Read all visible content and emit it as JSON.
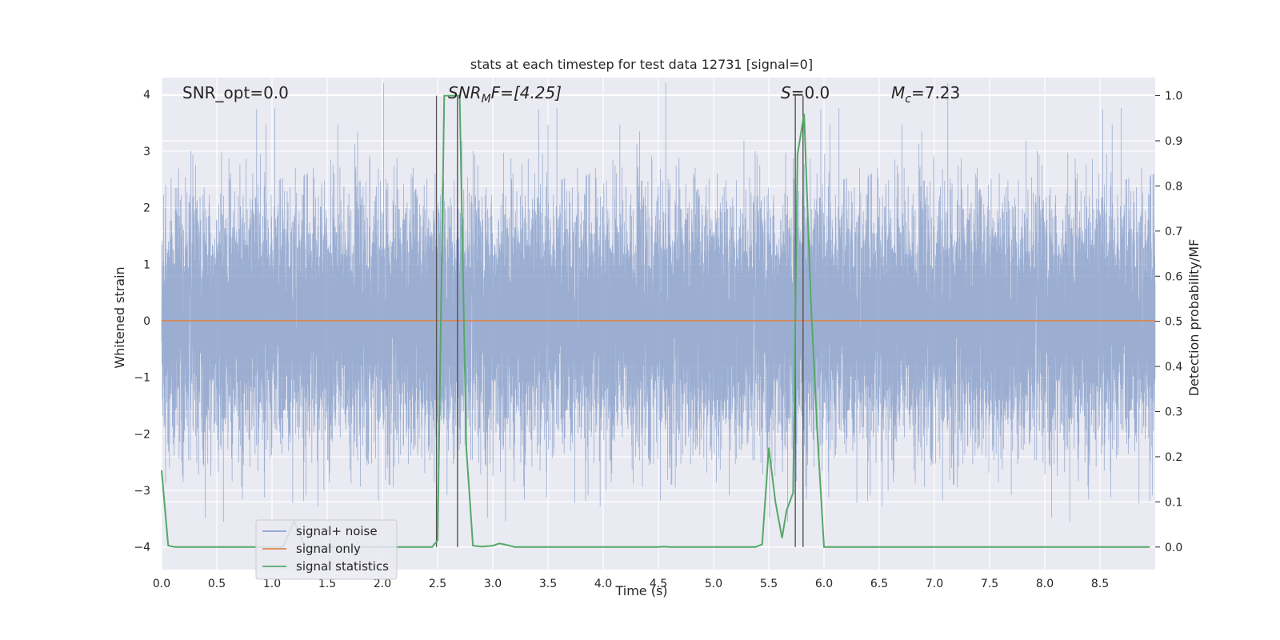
{
  "chart_data": {
    "type": "line",
    "title": "stats at each timestep for test data 12731 [signal=0]",
    "xlabel": "Time (s)",
    "ylabel_left": "Whitened strain",
    "ylabel_right": "Detection probability/MF",
    "xlim": [
      0.0,
      9.0
    ],
    "ylim_left": [
      -4.4,
      4.3
    ],
    "ylim_right": [
      -0.05,
      1.04
    ],
    "grid": true,
    "legend_position": "lower-left",
    "x_ticks": [
      "0.0",
      "0.5",
      "1.0",
      "1.5",
      "2.0",
      "2.5",
      "3.0",
      "3.5",
      "4.0",
      "4.5",
      "5.0",
      "5.5",
      "6.0",
      "6.5",
      "7.0",
      "7.5",
      "8.0",
      "8.5"
    ],
    "x_tick_values": [
      0.0,
      0.5,
      1.0,
      1.5,
      2.0,
      2.5,
      3.0,
      3.5,
      4.0,
      4.5,
      5.0,
      5.5,
      6.0,
      6.5,
      7.0,
      7.5,
      8.0,
      8.5
    ],
    "y_left_ticks": [
      "4",
      "3",
      "2",
      "1",
      "0",
      "−1",
      "−2",
      "−3",
      "−4"
    ],
    "y_left_tick_values": [
      4,
      3,
      2,
      1,
      0,
      -1,
      -2,
      -3,
      -4
    ],
    "y_right_ticks": [
      "1.0",
      "0.9",
      "0.8",
      "0.7",
      "0.6",
      "0.5",
      "0.4",
      "0.3",
      "0.2",
      "0.1",
      "0.0"
    ],
    "y_right_tick_values": [
      1.0,
      0.9,
      0.8,
      0.7,
      0.6,
      0.5,
      0.4,
      0.3,
      0.2,
      0.1,
      0.0
    ],
    "annotations": {
      "snr_opt": "SNR_opt=0.0",
      "snr_mf_main": "SNR",
      "snr_mf_sub": "M",
      "snr_mf_tail": "F=[4.25]",
      "s_italic": "S",
      "s_tail": "=0.0",
      "mc_main": "M",
      "mc_sub": "c",
      "mc_tail": "=7.23"
    },
    "series": [
      {
        "name": "signal+ noise",
        "color": "#8da3cc",
        "axis": "left",
        "kind": "noise",
        "sample_rate": 2048,
        "duration": 9.0,
        "amplitude_std": 1.05,
        "band_center": 0.0
      },
      {
        "name": "signal only",
        "color": "#dd8452",
        "axis": "left",
        "x": [
          0.0,
          9.0
        ],
        "y": [
          0.0,
          0.0
        ]
      },
      {
        "name": "signal statistics",
        "color": "#55a868",
        "axis": "right",
        "x": [
          0.0,
          0.06,
          0.12,
          0.3,
          0.6,
          1.0,
          1.1,
          1.2,
          1.3,
          1.4,
          2.0,
          2.45,
          2.5,
          2.56,
          2.62,
          2.7,
          2.76,
          2.82,
          2.9,
          3.0,
          3.06,
          3.12,
          3.2,
          3.5,
          4.0,
          4.5,
          4.55,
          4.6,
          5.0,
          5.38,
          5.44,
          5.5,
          5.56,
          5.62,
          5.66,
          5.72,
          5.76,
          5.82,
          5.88,
          5.94,
          6.0,
          7.0,
          8.0,
          8.95
        ],
        "y": [
          0.17,
          0.003,
          0.0,
          0.0,
          0.0,
          0.0,
          0.0,
          0.057,
          0.0,
          0.0,
          0.0,
          0.0,
          0.015,
          1.0,
          1.0,
          1.0,
          0.22,
          0.003,
          0.001,
          0.003,
          0.008,
          0.005,
          0.0,
          0.0,
          0.0,
          0.0,
          0.001,
          0.0,
          0.0,
          0.0,
          0.006,
          0.22,
          0.1,
          0.02,
          0.08,
          0.12,
          0.87,
          0.96,
          0.55,
          0.25,
          0.0,
          0.0,
          0.0,
          0.0
        ]
      }
    ],
    "vertical_markers": [
      2.49,
      2.68,
      5.74,
      5.81
    ],
    "marker_color": "#555555"
  }
}
